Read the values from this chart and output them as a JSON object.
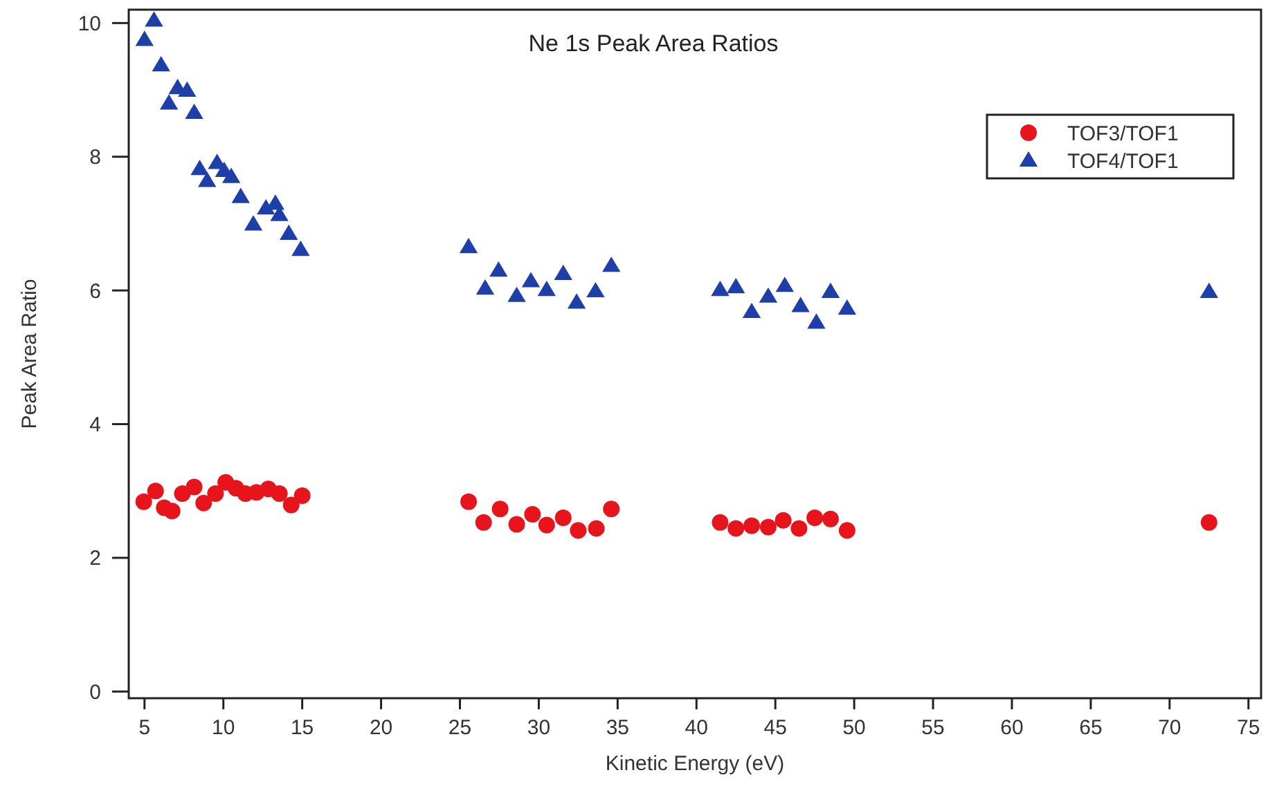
{
  "chart_data": {
    "type": "scatter",
    "title": "Ne 1s Peak Area Ratios",
    "xlabel": "Kinetic Energy (eV)",
    "ylabel": "Peak Area Ratio",
    "xlim": [
      4,
      75.8
    ],
    "ylim": [
      -0.1,
      10.2
    ],
    "xticks": [
      5,
      10,
      15,
      20,
      25,
      30,
      35,
      40,
      45,
      50,
      55,
      60,
      65,
      70,
      75
    ],
    "yticks": [
      0,
      2,
      4,
      6,
      8,
      10
    ],
    "grid": false,
    "legend": "top right",
    "series": [
      {
        "name": "TOF3/TOF1",
        "color": "#e8141c",
        "marker": "circle",
        "x": [
          4.95,
          5.7,
          6.25,
          6.75,
          7.4,
          8.15,
          8.75,
          9.5,
          10.15,
          10.8,
          11.4,
          12.1,
          12.85,
          13.55,
          14.3,
          15.0,
          25.55,
          26.5,
          27.55,
          28.6,
          29.6,
          30.5,
          31.55,
          32.5,
          33.65,
          34.6,
          41.5,
          42.5,
          43.5,
          44.55,
          45.5,
          46.5,
          47.5,
          48.5,
          49.55,
          72.5
        ],
        "values": [
          2.84,
          3.0,
          2.75,
          2.7,
          2.96,
          3.06,
          2.82,
          2.96,
          3.13,
          3.04,
          2.96,
          2.98,
          3.03,
          2.96,
          2.79,
          2.93,
          2.84,
          2.53,
          2.73,
          2.5,
          2.65,
          2.49,
          2.6,
          2.41,
          2.44,
          2.73,
          2.53,
          2.44,
          2.48,
          2.46,
          2.56,
          2.44,
          2.6,
          2.58,
          2.41,
          2.53
        ]
      },
      {
        "name": "TOF4/TOF1",
        "color": "#1f3fa8",
        "marker": "triangle",
        "x": [
          5.0,
          5.6,
          6.05,
          6.55,
          7.1,
          7.7,
          8.15,
          8.5,
          8.97,
          9.6,
          10.05,
          10.5,
          11.1,
          11.9,
          12.7,
          13.3,
          13.55,
          14.15,
          14.9,
          25.55,
          26.6,
          27.45,
          28.6,
          29.5,
          30.5,
          31.55,
          32.4,
          33.6,
          34.6,
          41.5,
          42.5,
          43.5,
          44.55,
          45.6,
          46.6,
          47.6,
          48.5,
          49.55,
          72.5
        ],
        "values": [
          9.75,
          10.04,
          9.37,
          8.8,
          9.03,
          8.99,
          8.66,
          7.82,
          7.64,
          7.91,
          7.79,
          7.7,
          7.4,
          6.99,
          7.23,
          7.3,
          7.13,
          6.85,
          6.61,
          6.65,
          6.03,
          6.3,
          5.92,
          6.14,
          6.01,
          6.25,
          5.82,
          5.99,
          6.37,
          6.01,
          6.05,
          5.68,
          5.91,
          6.07,
          5.77,
          5.52,
          5.98,
          5.73,
          5.98
        ]
      }
    ]
  }
}
